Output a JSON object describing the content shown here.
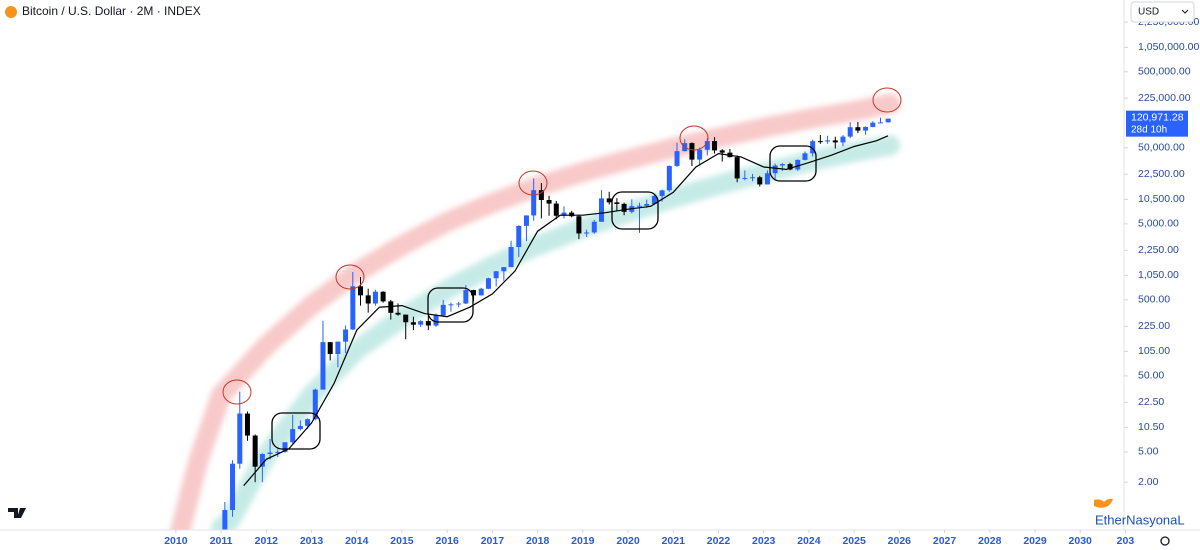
{
  "chart_data": {
    "type": "candlestick",
    "title": "Bitcoin / U.S. Dollar · 2M · INDEX",
    "currency": "USD",
    "price_label": "120,971.28",
    "countdown": "28d 10h",
    "watermark": "EtherNasyonaL",
    "log_scale": true,
    "grid": false,
    "up_color": "#2962ff",
    "down_color": "#000000",
    "ma_color": "#000000",
    "upper_band_color": "#f8c9c9",
    "lower_band_color": "#c6ebe7",
    "xlim": [
      2006.11,
      2030.88
    ],
    "xticks": [
      2010,
      2011,
      2012,
      2013,
      2014,
      2015,
      2016,
      2017,
      2018,
      2019,
      2020,
      2021,
      2022,
      2023,
      2024,
      2025,
      2026,
      2027,
      2028,
      2029,
      2030,
      {
        "value": 2031,
        "label": "203"
      }
    ],
    "ylim": [
      0.47,
      4400000
    ],
    "yticks": [
      {
        "value": 2,
        "label": "2.00"
      },
      {
        "value": 5,
        "label": "5.00"
      },
      {
        "value": 10.5,
        "label": "10.50"
      },
      {
        "value": 22.5,
        "label": "22.50"
      },
      {
        "value": 50,
        "label": "50.00"
      },
      {
        "value": 105,
        "label": "105.00"
      },
      {
        "value": 225,
        "label": "225.00"
      },
      {
        "value": 500,
        "label": "500.00"
      },
      {
        "value": 1050,
        "label": "1,050.00"
      },
      {
        "value": 2250,
        "label": "2,250.00"
      },
      {
        "value": 5000,
        "label": "5,000.00"
      },
      {
        "value": 10500,
        "label": "10,500.00"
      },
      {
        "value": 22500,
        "label": "22,500.00"
      },
      {
        "value": 50000,
        "label": "50,000.00"
      },
      {
        "value": 225000,
        "label": "225,000.00"
      },
      {
        "value": 500000,
        "label": "500,000.00"
      },
      {
        "value": 1050000,
        "label": "1,050,000.00"
      },
      {
        "value": 2250000,
        "label": "2,250,000.00"
      }
    ],
    "x": [
      2011,
      2011.17,
      2011.33,
      2011.5,
      2011.67,
      2011.83,
      2012,
      2012.17,
      2012.33,
      2012.5,
      2012.67,
      2012.83,
      2013,
      2013.17,
      2013.33,
      2013.5,
      2013.67,
      2013.83,
      2014,
      2014.17,
      2014.33,
      2014.5,
      2014.67,
      2014.83,
      2015,
      2015.17,
      2015.33,
      2015.5,
      2015.67,
      2015.83,
      2016,
      2016.17,
      2016.33,
      2016.5,
      2016.67,
      2016.83,
      2017,
      2017.17,
      2017.33,
      2017.5,
      2017.67,
      2017.83,
      2018,
      2018.17,
      2018.33,
      2018.5,
      2018.67,
      2018.83,
      2019,
      2019.17,
      2019.33,
      2019.5,
      2019.67,
      2019.83,
      2020,
      2020.17,
      2020.33,
      2020.5,
      2020.67,
      2020.83,
      2021,
      2021.17,
      2021.33,
      2021.5,
      2021.67,
      2021.83,
      2022,
      2022.17,
      2022.33,
      2022.5,
      2022.67,
      2022.83,
      2023,
      2023.17,
      2023.33,
      2023.5,
      2023.67,
      2023.83,
      2024,
      2024.17,
      2024.33,
      2024.5,
      2024.67,
      2024.83,
      2025,
      2025.17,
      2025.33,
      2025.5,
      2025.67
    ],
    "open": [
      0.3,
      0.86,
      3.5,
      16,
      8.2,
      3.2,
      4.7,
      4.9,
      5,
      6.7,
      10,
      11,
      13.5,
      33,
      139,
      97,
      141,
      204,
      754,
      573,
      448,
      640,
      478,
      338,
      320,
      254,
      236,
      263,
      230,
      311,
      430,
      437,
      448,
      673,
      573,
      700,
      963,
      1190,
      1350,
      2480,
      4700,
      6450,
      13880,
      10300,
      9240,
      6390,
      7030,
      6300,
      3740,
      3850,
      5330,
      10800,
      9590,
      9150,
      7190,
      8550,
      8650,
      9130,
      11650,
      13800,
      28900,
      45200,
      57700,
      35000,
      47100,
      61300,
      46300,
      43200,
      37700,
      19800,
      20100,
      20500,
      16500,
      23150,
      29250,
      30500,
      25950,
      34700,
      42300,
      61200,
      60600,
      62700,
      58900,
      70200,
      93400,
      84300,
      94200,
      107100,
      108200
    ],
    "high": [
      1.1,
      3.9,
      31,
      17,
      8.5,
      4.8,
      7.4,
      5.4,
      6.7,
      15.4,
      13,
      13.8,
      34,
      266,
      140,
      141,
      230,
      1163,
      1000,
      700,
      680,
      650,
      500,
      450,
      320,
      300,
      270,
      320,
      330,
      500,
      460,
      470,
      780,
      680,
      720,
      980,
      1200,
      1350,
      3000,
      4800,
      6470,
      19800,
      17200,
      11700,
      10000,
      8500,
      7400,
      6600,
      4200,
      5650,
      13900,
      13200,
      10900,
      9500,
      10500,
      9500,
      10400,
      12500,
      14100,
      29300,
      58350,
      64900,
      59000,
      50500,
      67000,
      69000,
      48000,
      48200,
      39800,
      25200,
      22700,
      21400,
      25200,
      31000,
      31400,
      31800,
      35200,
      44700,
      64000,
      73800,
      72000,
      70000,
      73600,
      108300,
      109500,
      95700,
      111900,
      124500,
      121500
    ],
    "low": [
      0.3,
      0.7,
      3,
      7,
      2,
      2,
      4,
      4.3,
      4.9,
      6.4,
      9.6,
      10,
      13,
      33,
      80,
      65,
      100,
      200,
      420,
      340,
      420,
      460,
      275,
      310,
      152,
      200,
      220,
      200,
      220,
      310,
      350,
      400,
      440,
      480,
      570,
      690,
      750,
      890,
      1350,
      1830,
      2970,
      5500,
      5900,
      6400,
      5750,
      5900,
      6100,
      3150,
      3350,
      3700,
      5300,
      9000,
      7300,
      6500,
      6850,
      3800,
      8100,
      8900,
      9800,
      13200,
      28100,
      45000,
      28800,
      29300,
      39600,
      42000,
      33000,
      37400,
      17600,
      18700,
      18150,
      15500,
      16500,
      19600,
      24800,
      25300,
      24900,
      34100,
      38500,
      56500,
      56500,
      49000,
      52500,
      66800,
      78200,
      74500,
      93400,
      105300,
      107300
    ],
    "close": [
      0.86,
      3.5,
      16,
      8.2,
      3.2,
      4.7,
      4.9,
      5,
      6.7,
      10,
      11,
      13.5,
      33,
      139,
      97,
      141,
      204,
      754,
      573,
      448,
      640,
      478,
      338,
      320,
      254,
      236,
      263,
      230,
      311,
      430,
      437,
      448,
      673,
      573,
      700,
      963,
      1190,
      1350,
      2480,
      4700,
      6450,
      13880,
      10300,
      9240,
      6390,
      7030,
      6300,
      3740,
      3850,
      5330,
      10800,
      9590,
      9150,
      7190,
      8550,
      8650,
      9130,
      11650,
      13800,
      28900,
      45200,
      57700,
      35000,
      47100,
      61300,
      46300,
      43200,
      37700,
      19800,
      20100,
      20500,
      16500,
      23150,
      29250,
      30500,
      25950,
      34700,
      42300,
      61200,
      60600,
      62700,
      58900,
      70200,
      93400,
      84300,
      94200,
      107100,
      108200,
      120971.28
    ],
    "ma": {
      "x": [
        2011.5,
        2012,
        2012.5,
        2013,
        2013.5,
        2014,
        2014.5,
        2015,
        2015.5,
        2016,
        2016.5,
        2017,
        2017.5,
        2018,
        2018.5,
        2019,
        2019.5,
        2020,
        2020.5,
        2021,
        2021.5,
        2022,
        2022.5,
        2023,
        2023.5,
        2024,
        2024.5,
        2025,
        2025.5,
        2025.75
      ],
      "values": [
        1.8,
        4,
        5.5,
        12,
        40,
        200,
        400,
        420,
        330,
        300,
        400,
        600,
        1200,
        4000,
        6500,
        6500,
        7000,
        7800,
        8500,
        13000,
        28000,
        42000,
        38000,
        28000,
        26000,
        32000,
        40000,
        52000,
        62000,
        72000
      ]
    },
    "upper_band": {
      "x": [
        2010.1,
        2010.5,
        2011,
        2012,
        2013,
        2014,
        2015,
        2016,
        2017,
        2018,
        2019,
        2020,
        2021,
        2022,
        2023,
        2024,
        2025,
        2025.8
      ],
      "values": [
        0.47,
        3.9,
        28,
        125,
        425,
        1150,
        2600,
        5300,
        9400,
        15600,
        24000,
        35000,
        50000,
        68000,
        92000,
        120000,
        152000,
        190000
      ]
    },
    "lower_band": {
      "x": [
        2011,
        2011.2,
        2012,
        2013,
        2014,
        2015,
        2016,
        2017,
        2018,
        2019,
        2020,
        2021,
        2022,
        2023,
        2024,
        2025,
        2025.8
      ],
      "values": [
        0.5,
        0.63,
        4.5,
        28,
        110,
        290,
        680,
        1400,
        2600,
        4400,
        7100,
        10900,
        16300,
        23400,
        33000,
        44000,
        54000
      ]
    }
  }
}
